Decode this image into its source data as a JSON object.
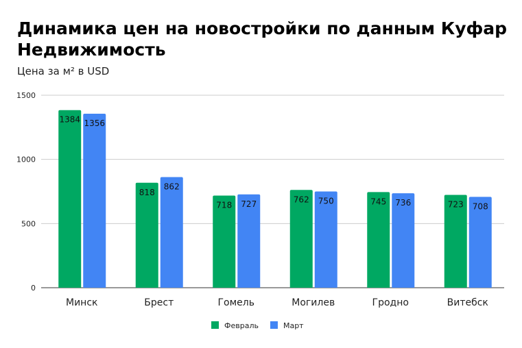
{
  "chart_data": {
    "type": "bar",
    "title": "Динамика цен на новостройки по данным Куфар Недвижимость",
    "subtitle": "Цена за м² в USD",
    "xlabel": "",
    "ylabel": "",
    "categories": [
      "Минск",
      "Брест",
      "Гомель",
      "Могилев",
      "Гродно",
      "Витебск"
    ],
    "series": [
      {
        "name": "Февраль",
        "color": "#00a862",
        "values": [
          1384,
          818,
          718,
          762,
          745,
          723
        ]
      },
      {
        "name": "Март",
        "color": "#4285f4",
        "values": [
          1356,
          862,
          727,
          750,
          736,
          708
        ]
      }
    ],
    "ylim": [
      0,
      1500
    ],
    "yticks": [
      "0",
      "500",
      "1000",
      "1500"
    ],
    "grid": true,
    "legend_position": "bottom"
  }
}
